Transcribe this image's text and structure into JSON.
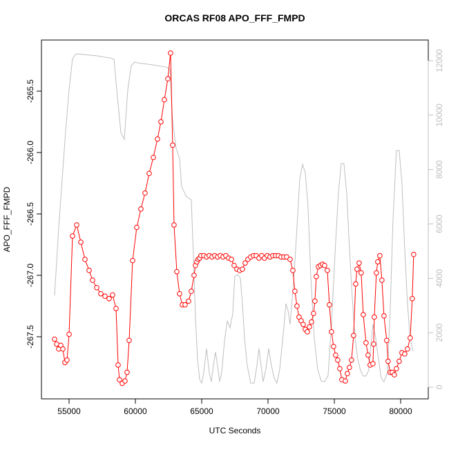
{
  "chart_data": {
    "type": "line",
    "title": "ORCAS RF08 APO_FFF_FMPD",
    "xlabel": "UTC Seconds",
    "ylabel": "APO_FFF_FMPD",
    "xlim": [
      52917,
      82083
    ],
    "xticks": [
      55000,
      60000,
      65000,
      70000,
      75000,
      80000
    ],
    "ylim": [
      -268.006,
      -265.084
    ],
    "yticks": [
      -265.5,
      {
        "value": -266.0,
        "label": "-266.0"
      },
      -266.5,
      {
        "value": -267.0,
        "label": "-267.0"
      },
      -267.5
    ],
    "y2lim": [
      -431,
      12761
    ],
    "y2ticks": [
      0,
      2000,
      4000,
      6000,
      8000,
      10000,
      12000
    ],
    "series": [
      {
        "color": "#ff0000",
        "markers": true,
        "x": [
          53906,
          54063,
          54219,
          54375,
          54531,
          54687,
          54843,
          55000,
          55260,
          55573,
          55885,
          56197,
          56510,
          56770,
          57083,
          57395,
          57707,
          58020,
          58280,
          58541,
          58697,
          58801,
          59009,
          59217,
          59374,
          59530,
          59790,
          60103,
          60415,
          60728,
          61040,
          61352,
          61665,
          61925,
          62185,
          62446,
          62654,
          62810,
          62914,
          63123,
          63331,
          63539,
          63748,
          64008,
          64216,
          64425,
          64529,
          64633,
          64737,
          64841,
          64945,
          65153,
          65362,
          65570,
          65778,
          65986,
          66195,
          66403,
          66611,
          66820,
          67028,
          67236,
          67445,
          67653,
          67861,
          68070,
          68278,
          68486,
          68695,
          68903,
          69111,
          69319,
          69528,
          69736,
          69944,
          70153,
          70361,
          70569,
          70777,
          70986,
          71194,
          71402,
          71663,
          71871,
          72027,
          72183,
          72339,
          72495,
          72651,
          72808,
          72964,
          73120,
          73276,
          73432,
          73536,
          73641,
          73797,
          73953,
          74109,
          74265,
          74473,
          74630,
          74786,
          74942,
          75098,
          75254,
          75411,
          75567,
          75827,
          75983,
          76139,
          76296,
          76452,
          76608,
          76712,
          76868,
          77024,
          77181,
          77389,
          77545,
          77701,
          77910,
          77962,
          78014,
          78170,
          78274,
          78430,
          78587,
          78743,
          78951,
          79055,
          79211,
          79368,
          79524,
          79680,
          79888,
          80096,
          80305,
          80513,
          80721,
          80877,
          80981
        ],
        "values": [
          -267.52,
          -267.56,
          -267.6,
          -267.57,
          -267.6,
          -267.71,
          -267.69,
          -267.48,
          -266.68,
          -266.59,
          -266.73,
          -266.87,
          -266.96,
          -267.04,
          -267.1,
          -267.15,
          -267.17,
          -267.19,
          -267.16,
          -267.27,
          -267.73,
          -267.85,
          -267.88,
          -267.86,
          -267.79,
          -267.53,
          -266.88,
          -266.61,
          -266.46,
          -266.33,
          -266.17,
          -266.04,
          -265.89,
          -265.75,
          -265.57,
          -265.4,
          -265.19,
          -265.94,
          -266.59,
          -266.97,
          -267.15,
          -267.24,
          -267.24,
          -267.21,
          -267.13,
          -267.0,
          -266.92,
          -266.89,
          -266.87,
          -266.86,
          -266.84,
          -266.84,
          -266.85,
          -266.84,
          -266.85,
          -266.84,
          -266.85,
          -266.84,
          -266.85,
          -266.84,
          -266.86,
          -266.87,
          -266.92,
          -266.95,
          -266.96,
          -266.95,
          -266.9,
          -266.87,
          -266.85,
          -266.84,
          -266.84,
          -266.86,
          -266.84,
          -266.86,
          -266.84,
          -266.85,
          -266.84,
          -266.84,
          -266.84,
          -266.85,
          -266.85,
          -266.85,
          -266.87,
          -266.96,
          -267.13,
          -267.25,
          -267.34,
          -267.37,
          -267.4,
          -267.44,
          -267.46,
          -267.42,
          -267.38,
          -267.31,
          -267.21,
          -267.01,
          -266.93,
          -266.92,
          -266.91,
          -266.92,
          -266.96,
          -267.24,
          -267.46,
          -267.58,
          -267.65,
          -267.69,
          -267.76,
          -267.85,
          -267.86,
          -267.8,
          -267.75,
          -267.69,
          -267.49,
          -267.07,
          -266.95,
          -266.9,
          -266.98,
          -267.32,
          -267.55,
          -267.65,
          -267.73,
          -267.72,
          -267.56,
          -267.34,
          -266.98,
          -266.89,
          -266.84,
          -267.04,
          -267.33,
          -267.53,
          -267.7,
          -267.79,
          -267.79,
          -267.81,
          -267.76,
          -267.7,
          -267.63,
          -267.64,
          -267.6,
          -267.51,
          -267.19,
          -266.83
        ]
      },
      {
        "color": "#bebebe",
        "axis": "y2",
        "markers": false,
        "x": [
          53906,
          54219,
          54479,
          54739,
          55000,
          55260,
          55521,
          56041,
          57083,
          58124,
          58385,
          58645,
          58905,
          59165,
          59426,
          59686,
          59947,
          60207,
          61248,
          62290,
          62602,
          62810,
          63071,
          63331,
          63487,
          63591,
          63852,
          64216,
          64373,
          64529,
          64685,
          64841,
          64997,
          65153,
          65362,
          65570,
          65726,
          65882,
          66039,
          66195,
          66351,
          66507,
          66715,
          66924,
          67132,
          67340,
          67496,
          67705,
          67913,
          68070,
          68226,
          68434,
          68695,
          68955,
          69163,
          69319,
          69476,
          69632,
          69840,
          70049,
          70257,
          70465,
          70673,
          70882,
          71038,
          71194,
          71350,
          71507,
          71663,
          71923,
          72183,
          72391,
          72600,
          72808,
          73016,
          73225,
          73485,
          73745,
          74005,
          74265,
          74526,
          74786,
          75046,
          75306,
          75515,
          75723,
          75931,
          76139,
          76348,
          76556,
          76764,
          76972,
          77181,
          77389,
          77597,
          77753,
          77910,
          78118,
          78326,
          78535,
          78743,
          79003,
          79211,
          79420,
          79680,
          79888,
          80096,
          80305,
          80513,
          80721,
          80929
        ],
        "values": [
          3370,
          5860,
          7640,
          9410,
          10930,
          12080,
          12250,
          12230,
          12180,
          12100,
          12050,
          10680,
          9360,
          9110,
          10930,
          11820,
          11950,
          11920,
          11850,
          11770,
          11700,
          9790,
          8780,
          8400,
          7380,
          7260,
          7000,
          6880,
          4850,
          2560,
          1040,
          280,
          150,
          530,
          1420,
          530,
          200,
          790,
          1290,
          790,
          200,
          530,
          1670,
          2440,
          2180,
          2690,
          4080,
          4140,
          4010,
          3070,
          1800,
          790,
          150,
          150,
          790,
          1420,
          790,
          200,
          660,
          1420,
          790,
          330,
          150,
          660,
          1420,
          2180,
          3070,
          2820,
          2310,
          3830,
          5860,
          7640,
          8190,
          7890,
          6620,
          4080,
          1800,
          660,
          230,
          200,
          410,
          2310,
          4850,
          7130,
          8220,
          8220,
          7130,
          5100,
          3320,
          1800,
          1040,
          610,
          410,
          410,
          630,
          1550,
          2310,
          1800,
          1040,
          330,
          200,
          530,
          2820,
          6110,
          8700,
          8700,
          7510,
          5100,
          3070,
          1800,
          1320
        ]
      }
    ]
  }
}
